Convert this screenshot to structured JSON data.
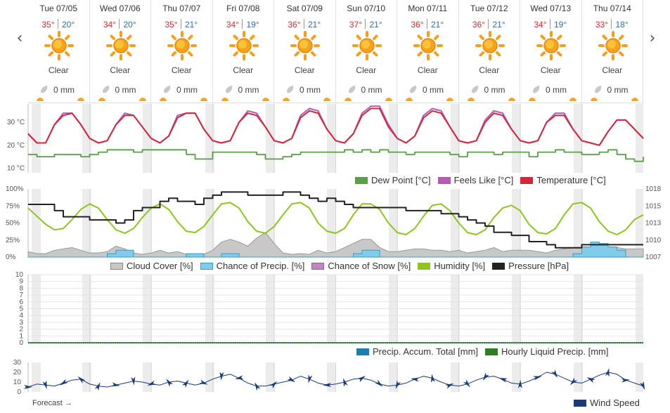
{
  "nav": {
    "prev": "‹",
    "next": "›"
  },
  "days": [
    {
      "date": "Tue 07/05",
      "hi": "35°",
      "lo": "20°",
      "cond": "Clear",
      "precip": "0 mm"
    },
    {
      "date": "Wed 07/06",
      "hi": "34°",
      "lo": "20°",
      "cond": "Clear",
      "precip": "0 mm"
    },
    {
      "date": "Thu 07/07",
      "hi": "35°",
      "lo": "21°",
      "cond": "Clear",
      "precip": "0 mm"
    },
    {
      "date": "Fri 07/08",
      "hi": "34°",
      "lo": "19°",
      "cond": "Clear",
      "precip": "0 mm"
    },
    {
      "date": "Sat 07/09",
      "hi": "36°",
      "lo": "21°",
      "cond": "Clear",
      "precip": "0 mm"
    },
    {
      "date": "Sun 07/10",
      "hi": "37°",
      "lo": "21°",
      "cond": "Clear",
      "precip": "0 mm"
    },
    {
      "date": "Mon 07/11",
      "hi": "36°",
      "lo": "21°",
      "cond": "Clear",
      "precip": "0 mm"
    },
    {
      "date": "Tue 07/12",
      "hi": "36°",
      "lo": "21°",
      "cond": "Clear",
      "precip": "0 mm"
    },
    {
      "date": "Wed 07/13",
      "hi": "34°",
      "lo": "19°",
      "cond": "Clear",
      "precip": "0 mm"
    },
    {
      "date": "Thu 07/14",
      "hi": "33°",
      "lo": "18°",
      "cond": "Clear",
      "precip": "0 mm"
    }
  ],
  "icons": {
    "weather": "sun-icon",
    "precip": "raindrop-icon"
  },
  "colors": {
    "temperature": "#d0283c",
    "feels_like": "#b45cb4",
    "dew_point": "#5a9e48",
    "cloud": "#c8c8c8",
    "precip_chance": "#7fcdea",
    "snow_chance": "#c088b8",
    "humidity": "#8cc61e",
    "pressure": "#222222",
    "precip_total": "#1b7db0",
    "hourly_precip": "#2e7d1e",
    "wind": "#1a3a7a"
  },
  "chart_data": [
    {
      "type": "line",
      "yticks": [
        "30 °C",
        "20 °C",
        "10 °C"
      ],
      "ylim": [
        8,
        38
      ],
      "series": [
        {
          "name": "Temperature [°C]",
          "values": [
            25,
            21,
            21,
            29,
            33,
            34,
            29,
            23,
            21,
            22,
            29,
            33,
            33,
            28,
            23,
            21,
            24,
            32,
            34,
            34,
            27,
            22,
            21,
            22,
            30,
            34,
            33,
            28,
            22,
            21,
            23,
            32,
            35,
            34,
            27,
            22,
            21,
            25,
            33,
            36,
            36,
            28,
            23,
            21,
            24,
            32,
            35,
            34,
            28,
            22,
            21,
            22,
            30,
            34,
            33,
            27,
            22,
            21,
            22,
            30,
            33,
            33,
            27,
            22,
            21,
            20,
            26,
            31,
            31,
            27,
            23
          ]
        },
        {
          "name": "Feels Like [°C]",
          "values": [
            25,
            21,
            21,
            29,
            34,
            34,
            29,
            23,
            21,
            22,
            29,
            34,
            33,
            28,
            23,
            21,
            24,
            33,
            34,
            34,
            27,
            22,
            21,
            22,
            30,
            35,
            34,
            28,
            22,
            21,
            23,
            33,
            36,
            35,
            27,
            22,
            21,
            25,
            34,
            37,
            37,
            29,
            23,
            21,
            24,
            33,
            36,
            35,
            28,
            22,
            21,
            22,
            31,
            35,
            34,
            27,
            22,
            21,
            22,
            30,
            34,
            34,
            27,
            22,
            21,
            20,
            26,
            31,
            31,
            27,
            23
          ]
        },
        {
          "name": "Dew Point [°C]",
          "values": [
            16,
            15,
            15,
            16,
            16,
            16,
            15,
            16,
            17,
            18,
            18,
            18,
            17,
            18,
            18,
            18,
            18,
            18,
            16,
            14,
            14,
            17,
            17,
            17,
            17,
            17,
            16,
            14,
            14,
            15,
            16,
            17,
            17,
            17,
            17,
            17,
            18,
            17,
            18,
            17,
            18,
            17,
            17,
            16,
            17,
            17,
            17,
            17,
            16,
            15,
            17,
            17,
            17,
            16,
            17,
            17,
            17,
            15,
            17,
            17,
            18,
            17,
            17,
            16,
            16,
            17,
            18,
            16,
            14,
            13,
            15
          ]
        }
      ]
    },
    {
      "type": "line",
      "yticks_left": [
        "100%",
        "75%",
        "50%",
        "25%",
        "0%"
      ],
      "yticks_right": [
        "1018",
        "1015",
        "1013",
        "1010",
        "1007"
      ],
      "ylim": [
        0,
        100
      ],
      "series": [
        {
          "name": "Cloud Cover [%]",
          "values": [
            8,
            5,
            5,
            10,
            12,
            14,
            10,
            6,
            6,
            8,
            16,
            12,
            6,
            4,
            6,
            10,
            6,
            8,
            4,
            4,
            4,
            10,
            22,
            26,
            22,
            16,
            28,
            36,
            20,
            6,
            4,
            5,
            4,
            10,
            6,
            8,
            14,
            20,
            26,
            26,
            14,
            8,
            8,
            10,
            12,
            12,
            10,
            10,
            8,
            10,
            6,
            8,
            10,
            14,
            8,
            10,
            10,
            10,
            8,
            6,
            10,
            12,
            14,
            14,
            10,
            10,
            12,
            14,
            12,
            12,
            12
          ]
        },
        {
          "name": "Chance of Precip. [%]",
          "values": [
            0,
            0,
            0,
            0,
            0,
            0,
            0,
            0,
            0,
            5,
            10,
            10,
            0,
            0,
            0,
            0,
            0,
            0,
            5,
            5,
            0,
            0,
            5,
            5,
            0,
            0,
            0,
            0,
            0,
            0,
            0,
            0,
            0,
            0,
            0,
            0,
            0,
            5,
            10,
            10,
            0,
            0,
            0,
            0,
            0,
            0,
            0,
            0,
            0,
            0,
            0,
            0,
            0,
            0,
            0,
            0,
            0,
            0,
            0,
            0,
            0,
            0,
            5,
            15,
            22,
            20,
            15,
            10,
            0,
            0,
            0
          ]
        },
        {
          "name": "Chance of Snow [%]",
          "values": [
            0,
            0,
            0,
            0,
            0,
            0,
            0,
            0,
            0,
            0,
            0,
            0,
            0,
            0,
            0,
            0,
            0,
            0,
            0,
            0,
            0,
            0,
            0,
            0,
            0,
            0,
            0,
            0,
            0,
            0,
            0,
            0,
            0,
            0,
            0,
            0,
            0,
            0,
            0,
            0,
            0,
            0,
            0,
            0,
            0,
            0,
            0,
            0,
            0,
            0,
            0,
            0,
            0,
            0,
            0,
            0,
            0,
            0,
            0,
            0,
            0,
            0,
            0,
            0,
            0,
            0,
            0,
            0,
            0,
            0,
            0
          ]
        },
        {
          "name": "Humidity [%]",
          "values": [
            72,
            60,
            48,
            40,
            42,
            55,
            70,
            78,
            72,
            55,
            40,
            35,
            42,
            58,
            72,
            78,
            70,
            52,
            38,
            36,
            45,
            62,
            78,
            80,
            72,
            52,
            38,
            35,
            45,
            62,
            78,
            80,
            72,
            50,
            38,
            35,
            42,
            62,
            78,
            78,
            70,
            50,
            36,
            33,
            42,
            60,
            76,
            78,
            68,
            50,
            36,
            33,
            40,
            58,
            72,
            76,
            68,
            48,
            36,
            34,
            42,
            62,
            78,
            80,
            72,
            52,
            38,
            33,
            40,
            55,
            62
          ]
        },
        {
          "name": "Pressure [hPa]",
          "values": [
            1015.5,
            1015.5,
            1015.5,
            1014.5,
            1013.5,
            1013.5,
            1013.5,
            1013,
            1013,
            1013,
            1012.5,
            1013,
            1014.5,
            1015,
            1015,
            1016,
            1016.5,
            1016,
            1016,
            1015.5,
            1016.5,
            1017,
            1017.5,
            1017.5,
            1017.5,
            1017,
            1017,
            1017,
            1017,
            1017.5,
            1017.5,
            1017,
            1016.5,
            1016,
            1016.5,
            1016,
            1015.5,
            1015,
            1015,
            1015,
            1015,
            1015,
            1015,
            1014.5,
            1014.5,
            1014.5,
            1014.5,
            1014,
            1014,
            1013.5,
            1013,
            1012.5,
            1012,
            1011,
            1011,
            1010.5,
            1010.5,
            1009.5,
            1009.5,
            1009,
            1008.5,
            1008.5,
            1008.5,
            1009,
            1009,
            1009,
            1009,
            1009,
            1009,
            1009,
            1009
          ]
        }
      ]
    },
    {
      "type": "line",
      "yticks": [
        "10",
        "9",
        "8",
        "7",
        "6",
        "5",
        "4",
        "3",
        "2",
        "1",
        "0"
      ],
      "ylim": [
        0,
        10
      ],
      "series": [
        {
          "name": "Precip. Accum. Total [mm]",
          "values": [
            0,
            0,
            0,
            0,
            0,
            0,
            0,
            0,
            0,
            0,
            0,
            0,
            0,
            0,
            0,
            0,
            0,
            0,
            0,
            0,
            0,
            0,
            0,
            0,
            0,
            0,
            0,
            0,
            0,
            0,
            0,
            0,
            0,
            0,
            0,
            0,
            0,
            0,
            0,
            0,
            0,
            0,
            0,
            0,
            0,
            0,
            0,
            0,
            0,
            0,
            0,
            0,
            0,
            0,
            0,
            0,
            0,
            0,
            0,
            0,
            0,
            0,
            0,
            0,
            0,
            0,
            0,
            0,
            0,
            0,
            0
          ]
        },
        {
          "name": "Hourly Liquid Precip. [mm]",
          "values": [
            0,
            0,
            0,
            0,
            0,
            0,
            0,
            0,
            0,
            0,
            0,
            0,
            0,
            0,
            0,
            0,
            0,
            0,
            0,
            0,
            0,
            0,
            0,
            0,
            0,
            0,
            0,
            0,
            0,
            0,
            0,
            0,
            0,
            0,
            0,
            0,
            0,
            0,
            0,
            0,
            0,
            0,
            0,
            0,
            0,
            0,
            0,
            0,
            0,
            0,
            0,
            0,
            0,
            0,
            0,
            0,
            0,
            0,
            0,
            0,
            0,
            0,
            0,
            0,
            0,
            0,
            0,
            0,
            0,
            0,
            0
          ]
        }
      ]
    },
    {
      "type": "line",
      "yticks": [
        "30",
        "20",
        "10",
        "0"
      ],
      "ylim": [
        0,
        30
      ],
      "series": [
        {
          "name": "Wind Speed",
          "values": [
            5,
            8,
            7,
            6,
            9,
            12,
            13,
            8,
            6,
            5,
            7,
            9,
            11,
            10,
            8,
            7,
            10,
            11,
            9,
            7,
            9,
            13,
            16,
            18,
            14,
            9,
            6,
            6,
            8,
            10,
            12,
            16,
            13,
            9,
            7,
            8,
            10,
            13,
            14,
            12,
            8,
            6,
            7,
            9,
            13,
            16,
            14,
            10,
            7,
            6,
            8,
            12,
            15,
            16,
            13,
            9,
            8,
            11,
            15,
            20,
            18,
            14,
            10,
            9,
            13,
            17,
            20,
            18,
            12,
            9,
            6
          ]
        }
      ]
    }
  ],
  "legends": {
    "temp": [
      "Dew Point [°C]",
      "Feels Like [°C]",
      "Temperature [°C]"
    ],
    "humidity": [
      "Cloud Cover [%]",
      "Chance of Precip. [%]",
      "Chance of Snow [%]",
      "Humidity [%]",
      "Pressure [hPa]"
    ],
    "precip": [
      "Precip. Accum. Total [mm]",
      "Hourly Liquid Precip. [mm]"
    ],
    "wind": [
      "Wind Speed"
    ]
  },
  "forecast_link": "Forecast →"
}
